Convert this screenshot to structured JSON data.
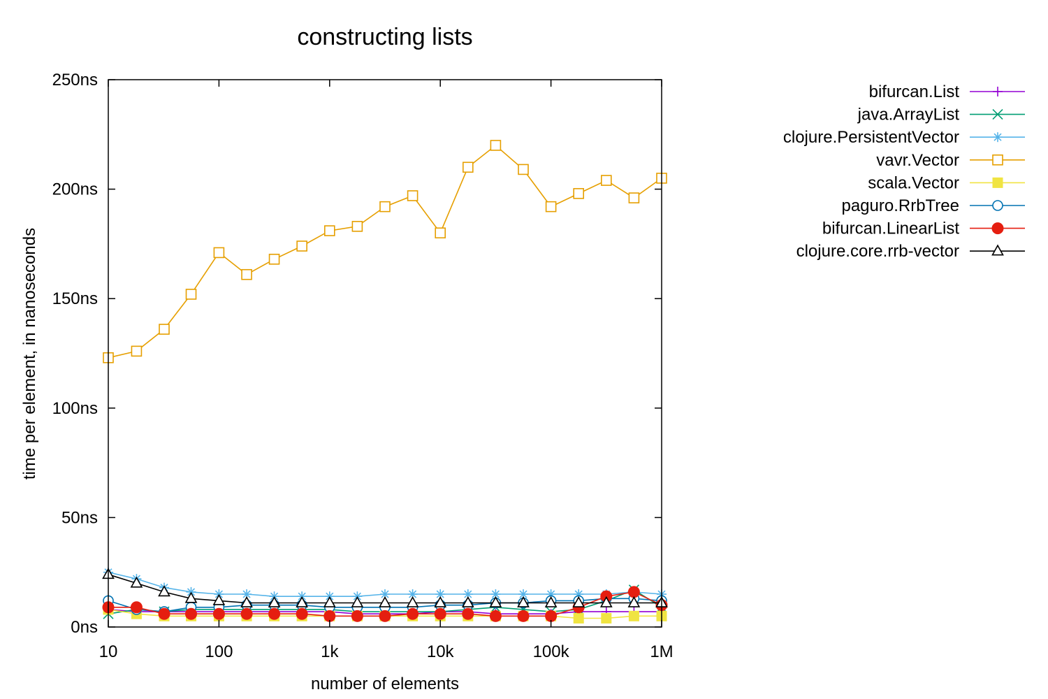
{
  "chart_data": {
    "type": "line",
    "title": "constructing lists",
    "xlabel": "number of elements",
    "ylabel": "time per element, in nanoseconds",
    "xscale": "log",
    "xlim": [
      10,
      1000000
    ],
    "ylim": [
      0,
      250
    ],
    "grid": false,
    "legend_position": "right",
    "x_ticks": [
      {
        "value": 10,
        "label": "10"
      },
      {
        "value": 100,
        "label": "100"
      },
      {
        "value": 1000,
        "label": "1k"
      },
      {
        "value": 10000,
        "label": "10k"
      },
      {
        "value": 100000,
        "label": "100k"
      },
      {
        "value": 1000000,
        "label": "1M"
      }
    ],
    "y_ticks": [
      {
        "value": 0,
        "label": "0ns"
      },
      {
        "value": 50,
        "label": "50ns"
      },
      {
        "value": 100,
        "label": "100ns"
      },
      {
        "value": 150,
        "label": "150ns"
      },
      {
        "value": 200,
        "label": "200ns"
      },
      {
        "value": 250,
        "label": "250ns"
      }
    ],
    "x": [
      10,
      18,
      32,
      56,
      100,
      178,
      316,
      562,
      1000,
      1778,
      3162,
      5623,
      10000,
      17783,
      31623,
      56234,
      100000,
      177828,
      316228,
      562341,
      1000000
    ],
    "series": [
      {
        "name": "bifurcan.List",
        "color": "#9400d3",
        "marker": "plus",
        "values": [
          8,
          7,
          7,
          7,
          7,
          7,
          7,
          7,
          7,
          6,
          6,
          6,
          7,
          7,
          6,
          6,
          6,
          7,
          7,
          7,
          7
        ]
      },
      {
        "name": "java.ArrayList",
        "color": "#009e73",
        "marker": "x",
        "values": [
          6,
          8,
          7,
          8,
          8,
          8,
          8,
          8,
          8,
          7,
          7,
          7,
          7,
          8,
          9,
          8,
          7,
          8,
          12,
          17,
          9
        ]
      },
      {
        "name": "clojure.PersistentVector",
        "color": "#56b4e9",
        "marker": "asterisk",
        "values": [
          25,
          22,
          18,
          16,
          15,
          15,
          14,
          14,
          14,
          14,
          15,
          15,
          15,
          15,
          15,
          15,
          15,
          15,
          15,
          16,
          15
        ]
      },
      {
        "name": "vavr.Vector",
        "color": "#e69f00",
        "marker": "square-open",
        "values": [
          123,
          126,
          136,
          152,
          171,
          161,
          168,
          174,
          181,
          183,
          192,
          197,
          180,
          210,
          220,
          209,
          192,
          198,
          204,
          196,
          205
        ]
      },
      {
        "name": "scala.Vector",
        "color": "#f0e442",
        "marker": "square-filled",
        "values": [
          8,
          6,
          5,
          5,
          5,
          5,
          5,
          5,
          5,
          5,
          5,
          5,
          5,
          5,
          5,
          5,
          5,
          4,
          4,
          5,
          5
        ]
      },
      {
        "name": "paguro.RrbTree",
        "color": "#0072b2",
        "marker": "circle-open",
        "values": [
          12,
          8,
          7,
          9,
          9,
          10,
          10,
          10,
          9,
          9,
          9,
          9,
          10,
          10,
          11,
          11,
          12,
          12,
          13,
          13,
          12
        ]
      },
      {
        "name": "bifurcan.LinearList",
        "color": "#e51e10",
        "marker": "circle-filled",
        "values": [
          9,
          9,
          6,
          6,
          6,
          6,
          6,
          6,
          5,
          5,
          5,
          6,
          6,
          6,
          5,
          5,
          5,
          9,
          14,
          16,
          10
        ]
      },
      {
        "name": "clojure.core.rrb-vector",
        "color": "#000000",
        "marker": "triangle-open",
        "values": [
          24,
          20,
          16,
          13,
          12,
          11,
          11,
          11,
          11,
          11,
          11,
          11,
          11,
          11,
          11,
          11,
          11,
          11,
          11,
          11,
          11
        ]
      }
    ]
  }
}
